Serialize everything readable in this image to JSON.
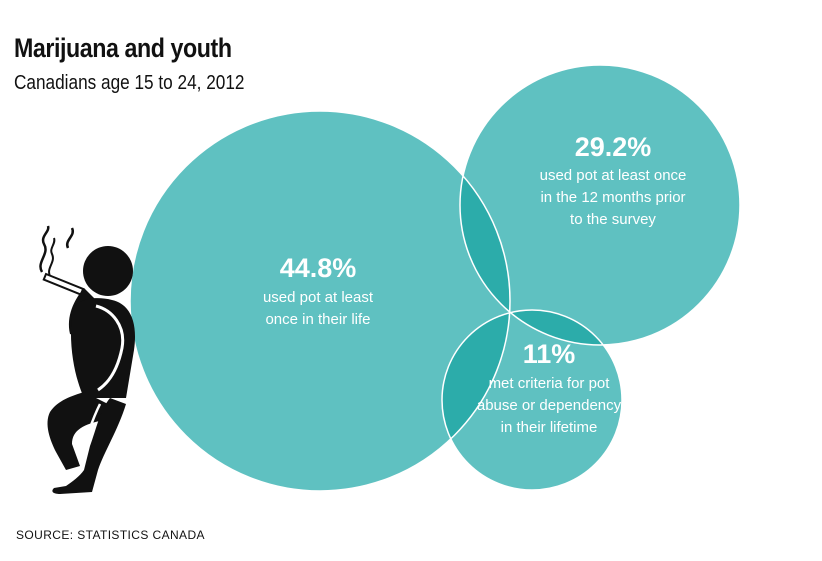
{
  "title": "Marijuana and youth",
  "subtitle": "Canadians age 15 to 24, 2012",
  "source": "SOURCE: STATISTICS CANADA",
  "colors": {
    "circle": "#5fc1c1",
    "overlap": "#2cacaa",
    "outline": "#ffffff",
    "text": "#ffffff",
    "figure": "#111111"
  },
  "chart_data": {
    "type": "bubble",
    "series": [
      {
        "value": 44.8,
        "value_label": "44.8%",
        "lines": [
          "used pot at least",
          "once in their life"
        ]
      },
      {
        "value": 29.2,
        "value_label": "29.2%",
        "lines": [
          "used pot at least once",
          "in the 12 months prior",
          "to the survey"
        ]
      },
      {
        "value": 11,
        "value_label": "11%",
        "lines": [
          "met criteria for pot",
          "abuse or dependency",
          "in their lifetime"
        ]
      }
    ]
  },
  "icons": {
    "figure": "smoking-person-icon"
  }
}
